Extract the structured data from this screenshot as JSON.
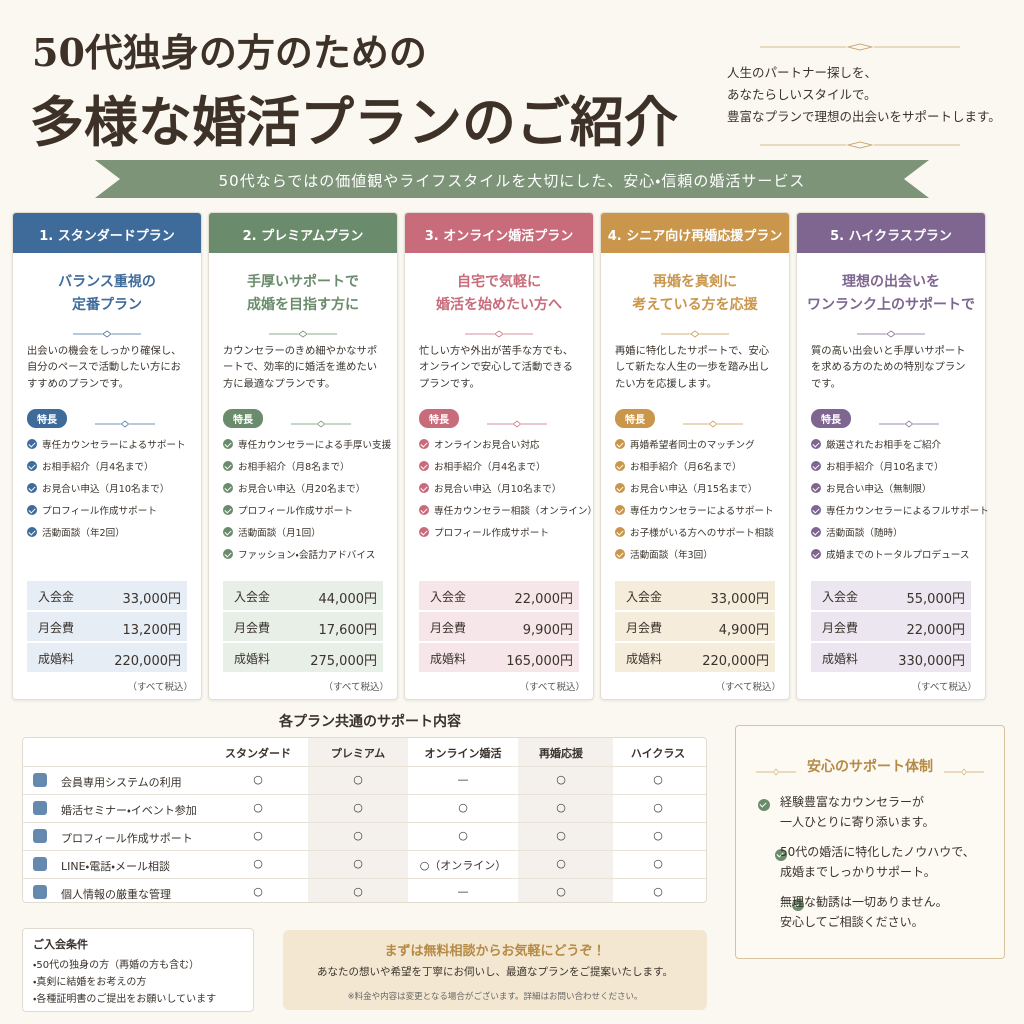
{
  "header": {
    "title_line1": "50代独身の方のための",
    "title_line2": "多様な婚活プランのご紹介",
    "intro": [
      "人生のパートナー探しを、",
      "あなたらしいスタイルで。",
      "豊富なプランで理想の出会いをサポートします。"
    ]
  },
  "banner": "50代ならではの価値観やライフスタイルを大切にした、安心・信頼の婚活サービス",
  "plans": [
    {
      "name": "1. スタンダードプラン",
      "color": "#3f6b9b",
      "tint": "#e6edf5",
      "catch": [
        "バランス重視の",
        "定番プラン"
      ],
      "description": "出会いの機会をしっかり確保し、自分のペースで活動したい方におすすめのプランです。",
      "features_label": "特長",
      "features": [
        "専任カウンセラーによるサポート",
        "お相手紹介（月4名まで）",
        "お見合い申込（月10名まで）",
        "プロフィール作成サポート",
        "活動面談（年2回）"
      ],
      "prices": [
        [
          "入会金",
          "33,000円"
        ],
        [
          "月会費",
          "13,200円"
        ],
        [
          "成婚料",
          "220,000円"
        ]
      ],
      "tax_note": "（すべて税込）"
    },
    {
      "name": "2. プレミアムプラン",
      "color": "#6a8c6c",
      "tint": "#e8efe6",
      "catch": [
        "手厚いサポートで",
        "成婚を目指す方に"
      ],
      "description": "カウンセラーのきめ細やかなサポートで、効率的に婚活を進めたい方に最適なプランです。",
      "features_label": "特長",
      "features": [
        "専任カウンセラーによる手厚い支援",
        "お相手紹介（月8名まで）",
        "お見合い申込（月20名まで）",
        "プロフィール作成サポート",
        "活動面談（月1回）",
        "ファッション・会話力アドバイス"
      ],
      "prices": [
        [
          "入会金",
          "44,000円"
        ],
        [
          "月会費",
          "17,600円"
        ],
        [
          "成婚料",
          "275,000円"
        ]
      ],
      "tax_note": "（すべて税込）"
    },
    {
      "name": "3. オンライン婚活プラン",
      "color": "#c86b7b",
      "tint": "#f7e6e9",
      "catch": [
        "自宅で気軽に",
        "婚活を始めたい方へ"
      ],
      "description": "忙しい方や外出が苦手な方でも、オンラインで安心して活動できるプランです。",
      "features_label": "特長",
      "features": [
        "オンラインお見合い対応",
        "お相手紹介（月4名まで）",
        "お見合い申込（月10名まで）",
        "専任カウンセラー相談（オンライン）",
        "プロフィール作成サポート"
      ],
      "prices": [
        [
          "入会金",
          "22,000円"
        ],
        [
          "月会費",
          "9,900円"
        ],
        [
          "成婚料",
          "165,000円"
        ]
      ],
      "tax_note": "（すべて税込）"
    },
    {
      "name": "4. シニア向け再婚応援プラン",
      "color": "#c9964c",
      "tint": "#f6ecdc",
      "catch": [
        "再婚を真剣に",
        "考えている方を応援"
      ],
      "description": "再婚に特化したサポートで、安心して新たな人生の一歩を踏み出したい方を応援します。",
      "features_label": "特長",
      "features": [
        "再婚希望者同士のマッチング",
        "お相手紹介（月6名まで）",
        "お見合い申込（月15名まで）",
        "専任カウンセラーによるサポート",
        "お子様がいる方へのサポート相談",
        "活動面談（年3回）"
      ],
      "prices": [
        [
          "入会金",
          "33,000円"
        ],
        [
          "月会費",
          "4,900円"
        ],
        [
          "成婚料",
          "220,000円"
        ]
      ],
      "tax_note": "（すべて税込）"
    },
    {
      "name": "5. ハイクラスプラン",
      "color": "#7e6691",
      "tint": "#ece6f0",
      "catch": [
        "理想の出会いを",
        "ワンランク上のサポートで"
      ],
      "description": "質の高い出会いと手厚いサポートを求める方のための特別なプランです。",
      "features_label": "特長",
      "features": [
        "厳選されたお相手をご紹介",
        "お相手紹介（月10名まで）",
        "お見合い申込（無制限）",
        "専任カウンセラーによるフルサポート",
        "活動面談（随時）",
        "成婚までのトータルプロデュース"
      ],
      "prices": [
        [
          "入会金",
          "55,000円"
        ],
        [
          "月会費",
          "22,000円"
        ],
        [
          "成婚料",
          "330,000円"
        ]
      ],
      "tax_note": "（すべて税込）"
    }
  ],
  "common": {
    "title": "各プラン共通のサポート内容",
    "columns": [
      "スタンダード",
      "プレミアム",
      "オンライン婚活",
      "再婚応援",
      "ハイクラス"
    ],
    "rows": [
      {
        "label": "会員専用システムの利用",
        "cells": [
          "○",
          "○",
          "—",
          "○",
          "○"
        ]
      },
      {
        "label": "婚活セミナー・イベント参加",
        "cells": [
          "○",
          "○",
          "○",
          "○",
          "○"
        ]
      },
      {
        "label": "プロフィール作成サポート",
        "cells": [
          "○",
          "○",
          "○",
          "○",
          "○"
        ]
      },
      {
        "label": "LINE・電話・メール相談",
        "cells": [
          "○",
          "○",
          "○（オンライン）",
          "○",
          "○"
        ]
      },
      {
        "label": "個人情報の厳重な管理",
        "cells": [
          "○",
          "○",
          "—",
          "○",
          "○"
        ]
      }
    ]
  },
  "safety": {
    "title": "安心のサポート体制",
    "items": [
      [
        "経験豊富なカウンセラーが",
        "一人ひとりに寄り添います。"
      ],
      [
        "50代の婚活に特化したノウハウで、",
        "成婚までしっかりサポート。"
      ],
      [
        "無理な勧誘は一切ありません。",
        "安心してご相談ください。"
      ]
    ]
  },
  "conditions": {
    "title": "ご入会条件",
    "items": [
      "・50代の独身の方（再婚の方も含む）",
      "・真剣に結婚をお考えの方",
      "・各種証明書のご提出をお願いしています"
    ]
  },
  "cta": {
    "title": "まずは無料相談からお気軽にどうぞ！",
    "text": "あなたの想いや希望を丁寧にお伺いし、最適なプランをご提案いたします。",
    "note": "※料金や内容は変更となる場合がございます。詳細はお問い合わせください。"
  }
}
